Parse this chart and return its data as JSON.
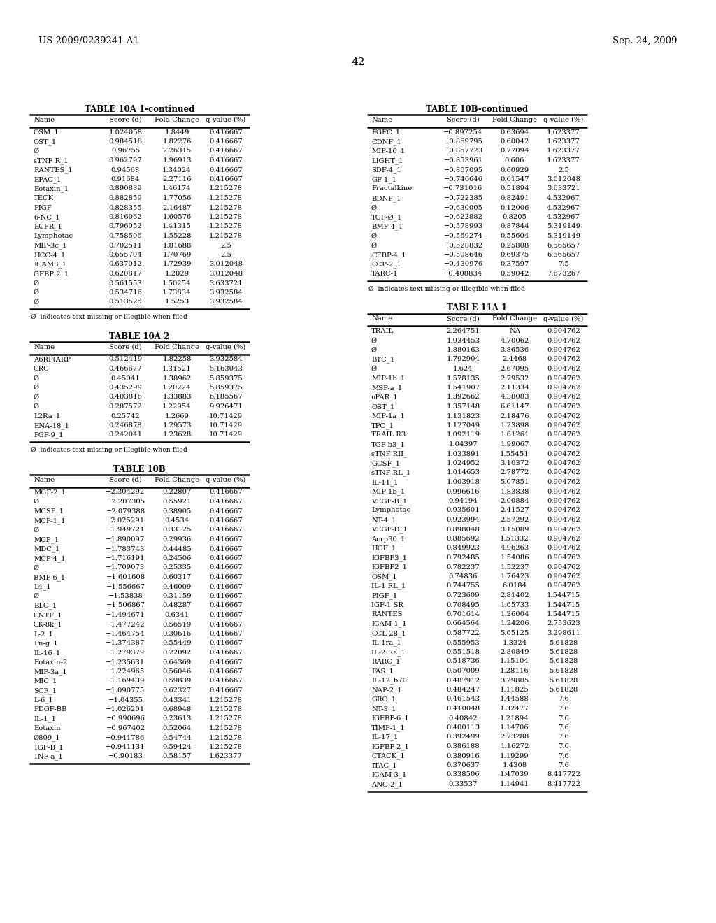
{
  "page_num": "42",
  "left_header": "US 2009/0239241 A1",
  "right_header": "Sep. 24, 2009",
  "table10A1_title": "TABLE 10A 1-continued",
  "table10A1_headers": [
    "Name",
    "Score (d)",
    "Fold Change",
    "q-value (%)"
  ],
  "table10A1_rows": [
    [
      "OSM_1",
      "1.024058",
      "1.8449",
      "0.416667"
    ],
    [
      "OST_1",
      "0.984518",
      "1.82276",
      "0.416667"
    ],
    [
      "Ø",
      "0.96755",
      "2.26315",
      "0.416667"
    ],
    [
      "sTNF R_1",
      "0.962797",
      "1.96913",
      "0.416667"
    ],
    [
      "RANTES_1",
      "0.94568",
      "1.34024",
      "0.416667"
    ],
    [
      "EPAC_1",
      "0.91684",
      "2.27116",
      "0.416667"
    ],
    [
      "Eotaxin_1",
      "0.890839",
      "1.46174",
      "1.215278"
    ],
    [
      "TECK",
      "0.882859",
      "1.77056",
      "1.215278"
    ],
    [
      "PIGF",
      "0.828355",
      "2.16487",
      "1.215278"
    ],
    [
      "6-NC_1",
      "0.816062",
      "1.60576",
      "1.215278"
    ],
    [
      "ECFR_1",
      "0.796052",
      "1.41315",
      "1.215278"
    ],
    [
      "Lymphotac",
      "0.758506",
      "1.55228",
      "1.215278"
    ],
    [
      "MIP-3c_1",
      "0.702511",
      "1.81688",
      "2.5"
    ],
    [
      "HCC-4_1",
      "0.655704",
      "1.70769",
      "2.5"
    ],
    [
      "ICAM3_1",
      "0.637012",
      "1.72939",
      "3.012048"
    ],
    [
      "GFBP 2_1",
      "0.620817",
      "1.2029",
      "3.012048"
    ],
    [
      "Ø",
      "0.561553",
      "1.50254",
      "3.633721"
    ],
    [
      "Ø",
      "0.534716",
      "1.73834",
      "3.932584"
    ],
    [
      "Ø",
      "0.513525",
      "1.5253",
      "3.932584"
    ]
  ],
  "table10A1_footnote": "Ø  indicates text missing or illegible when filed",
  "table10A2_title": "TABLE 10A 2",
  "table10A2_headers": [
    "Name",
    "Score (d)",
    "Fold Change",
    "q-value (%)"
  ],
  "table10A2_rows": [
    [
      "A6RP(ARP",
      "0.512419",
      "1.82258",
      "3.932584"
    ],
    [
      "CRC",
      "0.466677",
      "1.31521",
      "5.163043"
    ],
    [
      "Ø",
      "0.45041",
      "1.38962",
      "5.859375"
    ],
    [
      "Ø",
      "0.435299",
      "1.20224",
      "5.859375"
    ],
    [
      "Ø",
      "0.403816",
      "1.33883",
      "6.185567"
    ],
    [
      "Ø",
      "0.287572",
      "1.22954",
      "9.926471"
    ],
    [
      "L2Ra_1",
      "0.25742",
      "1.2669",
      "10.71429"
    ],
    [
      "ENA-18_1",
      "0.246878",
      "1.29573",
      "10.71429"
    ],
    [
      "PGF-9_1",
      "0.242041",
      "1.23628",
      "10.71429"
    ]
  ],
  "table10A2_footnote": "Ø  indicates text missing or illegible when filed",
  "table10B_title": "TABLE 10B",
  "table10B_headers": [
    "Name",
    "Score (d)",
    "Fold Change",
    "q-value (%)"
  ],
  "table10B_rows": [
    [
      "MGF-2_1",
      "−2.304292",
      "0.22807",
      "0.416667"
    ],
    [
      "Ø",
      "−2.207305",
      "0.55921",
      "0.416667"
    ],
    [
      "MCSP_1",
      "−2.079388",
      "0.38905",
      "0.416667"
    ],
    [
      "MCP-1_1",
      "−2.025291",
      "0.4534",
      "0.416667"
    ],
    [
      "Ø",
      "−1.949721",
      "0.33125",
      "0.416667"
    ],
    [
      "MCP_1",
      "−1.890097",
      "0.29936",
      "0.416667"
    ],
    [
      "MDC_1",
      "−1.783743",
      "0.44485",
      "0.416667"
    ],
    [
      "MCP-4_1",
      "−1.716191",
      "0.24506",
      "0.416667"
    ],
    [
      "Ø",
      "−1.709073",
      "0.25335",
      "0.416667"
    ],
    [
      "BMP 6_1",
      "−1.601608",
      "0.60317",
      "0.416667"
    ],
    [
      "L4_1",
      "−1.556667",
      "0.46009",
      "0.416667"
    ],
    [
      "Ø",
      "−1.53838",
      "0.31159",
      "0.416667"
    ],
    [
      "BLC_1",
      "−1.506867",
      "0.48287",
      "0.416667"
    ],
    [
      "CNTF_1",
      "−1.494671",
      "0.6341",
      "0.416667"
    ],
    [
      "CK-8k_1",
      "−1.477242",
      "0.56519",
      "0.416667"
    ],
    [
      "L-2_1",
      "−1.464754",
      "0.30616",
      "0.416667"
    ],
    [
      "Fn-g_1",
      "−1.374387",
      "0.55449",
      "0.416667"
    ],
    [
      "IL-16_1",
      "−1.279379",
      "0.22092",
      "0.416667"
    ],
    [
      "Eotaxin-2",
      "−1.235631",
      "0.64369",
      "0.416667"
    ],
    [
      "MIP-3a_1",
      "−1.224965",
      "0.56046",
      "0.416667"
    ],
    [
      "MIC_1",
      "−1.169439",
      "0.59839",
      "0.416667"
    ],
    [
      "SCF_1",
      "−1.090775",
      "0.62327",
      "0.416667"
    ],
    [
      "L-6_1",
      "−1.04355",
      "0.43341",
      "1.215278"
    ],
    [
      "PDGF-BB",
      "−1.026201",
      "0.68948",
      "1.215278"
    ],
    [
      "IL-1_1",
      "−0.990696",
      "0.23613",
      "1.215278"
    ],
    [
      "Eotaxin",
      "−0.967402",
      "0.52064",
      "1.215278"
    ],
    [
      "Ø809_1",
      "−0.941786",
      "0.54744",
      "1.215278"
    ],
    [
      "TGF-B_1",
      "−0.941131",
      "0.59424",
      "1.215278"
    ],
    [
      "TNF-a_1",
      "−0.90183",
      "0.58157",
      "1.623377"
    ]
  ],
  "table10Bcont_title": "TABLE 10B-continued",
  "table10Bcont_headers": [
    "Name",
    "Score (d)",
    "Fold Change",
    "q-value (%)"
  ],
  "table10Bcont_rows": [
    [
      "FGFC_1",
      "−0.897254",
      "0.63694",
      "1.623377"
    ],
    [
      "CDNF_1",
      "−0.869795",
      "0.60042",
      "1.623377"
    ],
    [
      "MIP-16_1",
      "−0.857723",
      "0.77094",
      "1.623377"
    ],
    [
      "LIGHT_1",
      "−0.853961",
      "0.606",
      "1.623377"
    ],
    [
      "SDF-4_1",
      "−0.807095",
      "0.60929",
      "2.5"
    ],
    [
      "GF-1_1",
      "−0.746646",
      "0.61547",
      "3.012048"
    ],
    [
      "Fractalkine",
      "−0.731016",
      "0.51894",
      "3.633721"
    ],
    [
      "BDNF_1",
      "−0.722385",
      "0.82491",
      "4.532967"
    ],
    [
      "Ø",
      "−0.630005",
      "0.12006",
      "4.532967"
    ],
    [
      "TGF-Ø_1",
      "−0.622882",
      "0.8205",
      "4.532967"
    ],
    [
      "BMF-4_1",
      "−0.578993",
      "0.87844",
      "5.319149"
    ],
    [
      "Ø",
      "−0.569274",
      "0.55604",
      "5.319149"
    ],
    [
      "Ø",
      "−0.528832",
      "0.25808",
      "6.565657"
    ],
    [
      "CFBP-4_1",
      "−0.508646",
      "0.69375",
      "6.565657"
    ],
    [
      "CCP-2_1",
      "−0.430976",
      "0.37597",
      "7.5"
    ],
    [
      "TARC-1",
      "−0.408834",
      "0.59042",
      "7.673267"
    ]
  ],
  "table10Bcont_footnote": "Ø  indicates text missing or illegible when filed",
  "table11A1_title": "TABLE 11A 1",
  "table11A1_headers": [
    "Name",
    "Score (d)",
    "Fold Change",
    "q-value (%)"
  ],
  "table11A1_rows": [
    [
      "TRAIL",
      "2.264751",
      "NA",
      "0.904762"
    ],
    [
      "Ø",
      "1.934453",
      "4.70062",
      "0.904762"
    ],
    [
      "Ø",
      "1.880163",
      "3.86536",
      "0.904762"
    ],
    [
      "BTC_1",
      "1.792904",
      "2.4468",
      "0.904762"
    ],
    [
      "Ø",
      "1.624",
      "2.67095",
      "0.904762"
    ],
    [
      "MIP-1b_1",
      "1.578135",
      "2.79532",
      "0.904762"
    ],
    [
      "MSP-a_1",
      "1.541907",
      "2.11334",
      "0.904762"
    ],
    [
      "uPAR_1",
      "1.392662",
      "4.38083",
      "0.904762"
    ],
    [
      "OST_1",
      "1.357148",
      "6.61147",
      "0.904762"
    ],
    [
      "MIP-1a_1",
      "1.131823",
      "2.18476",
      "0.904762"
    ],
    [
      "TPO_1",
      "1.127049",
      "1.23898",
      "0.904762"
    ],
    [
      "TRAIL R3",
      "1.092119",
      "1.61261",
      "0.904762"
    ],
    [
      "TGF-b3_1",
      "1.04397",
      "1.99067",
      "0.904762"
    ],
    [
      "sTNF RII_",
      "1.033891",
      "1.55451",
      "0.904762"
    ],
    [
      "GCSF_1",
      "1.024952",
      "3.10372",
      "0.904762"
    ],
    [
      "sTNF RL_1",
      "1.014653",
      "2.78772",
      "0.904762"
    ],
    [
      "IL-11_1",
      "1.003918",
      "5.07851",
      "0.904762"
    ],
    [
      "MIP-1b_1",
      "0.996616",
      "1.83838",
      "0.904762"
    ],
    [
      "VEGF-B_1",
      "0.94194",
      "2.00884",
      "0.904762"
    ],
    [
      "Lymphotac",
      "0.935601",
      "2.41527",
      "0.904762"
    ],
    [
      "NT-4_1",
      "0.923994",
      "2.57292",
      "0.904762"
    ],
    [
      "VEGF-D_1",
      "0.898048",
      "3.15089",
      "0.904762"
    ],
    [
      "Acrp30_1",
      "0.885692",
      "1.51332",
      "0.904762"
    ],
    [
      "HGF_1",
      "0.849923",
      "4.96263",
      "0.904762"
    ],
    [
      "IGFBP3_1",
      "0.792485",
      "1.54086",
      "0.904762"
    ],
    [
      "IGFBP2_1",
      "0.782237",
      "1.52237",
      "0.904762"
    ],
    [
      "OSM_1",
      "0.74836",
      "1.76423",
      "0.904762"
    ],
    [
      "IL-1 RL_1",
      "0.744755",
      "6.0184",
      "0.904762"
    ],
    [
      "PIGF_1",
      "0.723609",
      "2.81402",
      "1.544715"
    ],
    [
      "IGF-1 SR",
      "0.708495",
      "1.65733",
      "1.544715"
    ],
    [
      "RANTES",
      "0.701614",
      "1.26004",
      "1.544715"
    ],
    [
      "ICAM-1_1",
      "0.664564",
      "1.24206",
      "2.753623"
    ],
    [
      "CCL-28_1",
      "0.587722",
      "5.65125",
      "3.298611"
    ],
    [
      "IL-1ra_1",
      "0.555953",
      "1.3324",
      "5.61828"
    ],
    [
      "IL-2 Ra_1",
      "0.551518",
      "2.80849",
      "5.61828"
    ],
    [
      "RARC_1",
      "0.518736",
      "1.15104",
      "5.61828"
    ],
    [
      "FAS_1",
      "0.507009",
      "1.28116",
      "5.61828"
    ],
    [
      "IL-12_b70",
      "0.487912",
      "3.29805",
      "5.61828"
    ],
    [
      "NAP-2_1",
      "0.484247",
      "1.11825",
      "5.61828"
    ],
    [
      "GRO_1",
      "0.461543",
      "1.44588",
      "7.6"
    ],
    [
      "NT-3_1",
      "0.410048",
      "1.32477",
      "7.6"
    ],
    [
      "IGFBP-6_1",
      "0.40842",
      "1.21894",
      "7.6"
    ],
    [
      "TIMP-1_1",
      "0.400113",
      "1.14706",
      "7.6"
    ],
    [
      "IL-17_1",
      "0.392499",
      "2.73288",
      "7.6"
    ],
    [
      "IGFBP-2_1",
      "0.386188",
      "1.16272",
      "7.6"
    ],
    [
      "CTACK_1",
      "0.380916",
      "1.19299",
      "7.6"
    ],
    [
      "ITAC_1",
      "0.370637",
      "1.4308",
      "7.6"
    ],
    [
      "ICAM-3_1",
      "0.338506",
      "1.47039",
      "8.417722"
    ],
    [
      "ANC-2_1",
      "0.33537",
      "1.14941",
      "8.417722"
    ]
  ]
}
